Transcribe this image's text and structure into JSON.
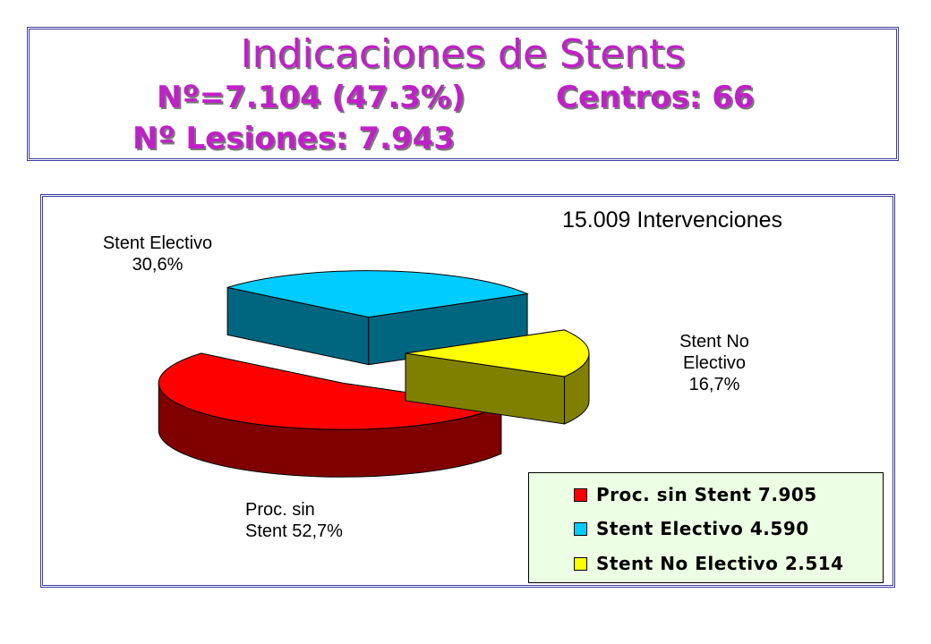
{
  "title": {
    "line1": "Indicaciones de Stents",
    "line2a": "Nº=7.104 (47.3%)",
    "line2b": "Centros: 66",
    "line3": "Nº Lesiones: 7.943"
  },
  "chart_data": {
    "type": "pie",
    "title": "15.009 Intervenciones",
    "slices": [
      {
        "name": "Proc. sin Stent",
        "label_line1": "Proc. sin",
        "label_line2": "Stent 52,7%",
        "percent": 52.7,
        "count": 7905,
        "legend": "Proc. sin Stent 7.905",
        "top_color": "#ff0000",
        "side_color": "#800000"
      },
      {
        "name": "Stent Electivo",
        "label_line1": "Stent Electivo",
        "label_line2": "30,6%",
        "percent": 30.6,
        "count": 4590,
        "legend": "Stent Electivo 4.590",
        "top_color": "#00ccff",
        "side_color": "#006680"
      },
      {
        "name": "Stent No Electivo",
        "label_line1": "Stent No",
        "label_line2": "Electivo",
        "label_line3": "16,7%",
        "percent": 16.7,
        "count": 2514,
        "legend": "Stent No Electivo 2.514",
        "top_color": "#ffff00",
        "side_color": "#808000"
      }
    ],
    "legend_position": "bottom-right",
    "style": "3d-exploded-pie"
  }
}
